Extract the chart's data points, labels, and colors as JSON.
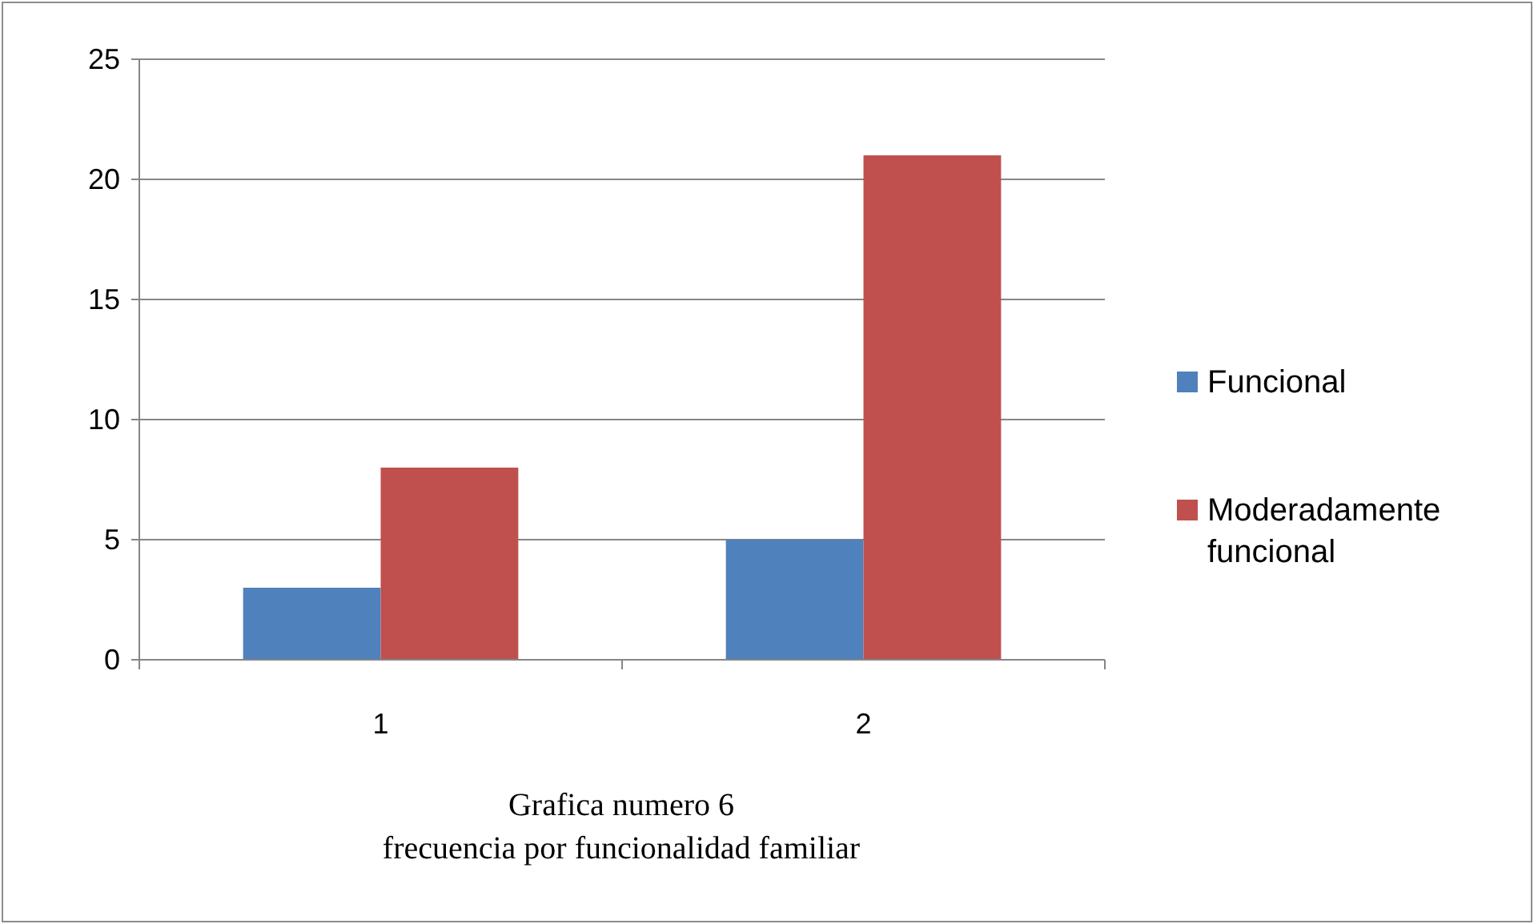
{
  "chart_data": {
    "type": "bar",
    "title": "Grafica numero 6",
    "subtitle": "frecuencia por funcionalidad familiar",
    "categories": [
      "1",
      "2"
    ],
    "series": [
      {
        "name": "Funcional",
        "color": "#4f81bd",
        "values": [
          3,
          5
        ]
      },
      {
        "name": "Moderadamente funcional",
        "color": "#c0504d",
        "values": [
          8,
          21
        ]
      }
    ],
    "ylim": [
      0,
      25
    ],
    "yticks": [
      0,
      5,
      10,
      15,
      20,
      25
    ],
    "grid": "y",
    "legend": "right"
  }
}
